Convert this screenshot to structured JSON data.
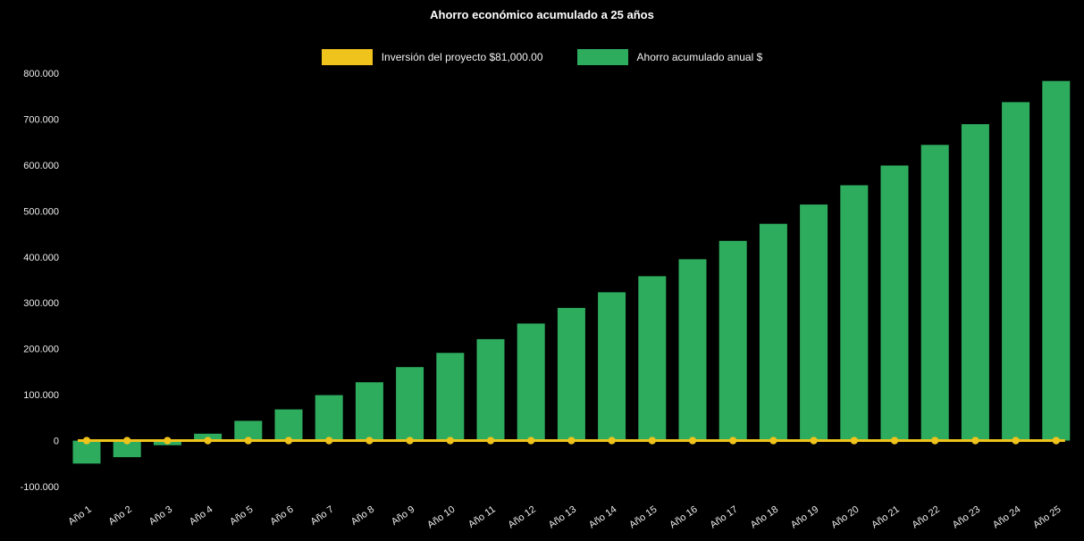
{
  "chart_data": {
    "type": "bar",
    "title": "Ahorro económico acumulado a 25 años",
    "background": "#000000",
    "grid": false,
    "legend_position": "top",
    "legend": [
      {
        "label": "Inversión del proyecto $81,000.00",
        "color": "#efc31c"
      },
      {
        "label": "Ahorro acumulado anual $",
        "color": "#2eac5e"
      }
    ],
    "categories": [
      "Año 1",
      "Año 2",
      "Año 3",
      "Año 4",
      "Año 5",
      "Año 6",
      "Año 7",
      "Año 8",
      "Año 9",
      "Año 10",
      "Año 11",
      "Año 12",
      "Año 13",
      "Año 14",
      "Año 15",
      "Año 16",
      "Año 17",
      "Año 18",
      "Año 19",
      "Año 20",
      "Año 21",
      "Año 22",
      "Año 23",
      "Año 24",
      "Año 25"
    ],
    "series": [
      {
        "name": "Ahorro acumulado anual $",
        "type": "bar",
        "color": "#2eac5e",
        "values": [
          -50000,
          -36000,
          -10000,
          15000,
          43000,
          68000,
          99000,
          127000,
          160000,
          191000,
          221000,
          255000,
          289000,
          323000,
          358000,
          395000,
          435000,
          472000,
          514000,
          556000,
          599000,
          644000,
          689000,
          737000,
          783000
        ]
      },
      {
        "name": "Inversión del proyecto $81,000.00",
        "type": "line",
        "color": "#efc31c",
        "marker": "circle",
        "value": 0
      }
    ],
    "ylim": [
      -100000,
      800000
    ],
    "ytick_step": 100000,
    "yticks": [
      {
        "value": 800000,
        "label": "800.000"
      },
      {
        "value": 700000,
        "label": "700.000"
      },
      {
        "value": 600000,
        "label": "600.000"
      },
      {
        "value": 500000,
        "label": "500.000"
      },
      {
        "value": 400000,
        "label": "400.000"
      },
      {
        "value": 300000,
        "label": "300.000"
      },
      {
        "value": 200000,
        "label": "200.000"
      },
      {
        "value": 100000,
        "label": "100.000"
      },
      {
        "value": 0,
        "label": "0"
      },
      {
        "value": -100000,
        "label": "-100.000"
      }
    ],
    "xlabel": "",
    "ylabel": ""
  }
}
